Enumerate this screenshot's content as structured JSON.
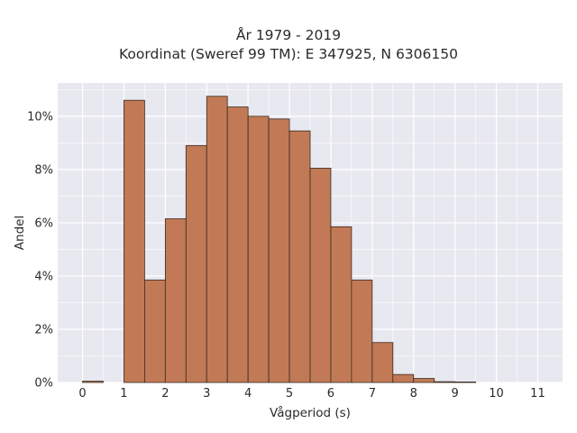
{
  "chart_data": {
    "type": "bar",
    "title": "År 1979 - 2019",
    "subtitle": "Koordinat (Sweref 99 TM): E 347925, N 6306150",
    "xlabel": "Vågperiod (s)",
    "ylabel": "Andel",
    "bin_width": 0.5,
    "bins": [
      {
        "start": 0.0,
        "value": 0.05
      },
      {
        "start": 0.5,
        "value": 0.0
      },
      {
        "start": 1.0,
        "value": 10.6
      },
      {
        "start": 1.5,
        "value": 3.85
      },
      {
        "start": 2.0,
        "value": 6.15
      },
      {
        "start": 2.5,
        "value": 8.9
      },
      {
        "start": 3.0,
        "value": 10.75
      },
      {
        "start": 3.5,
        "value": 10.35
      },
      {
        "start": 4.0,
        "value": 10.0
      },
      {
        "start": 4.5,
        "value": 9.9
      },
      {
        "start": 5.0,
        "value": 9.45
      },
      {
        "start": 5.5,
        "value": 8.05
      },
      {
        "start": 6.0,
        "value": 5.85
      },
      {
        "start": 6.5,
        "value": 3.85
      },
      {
        "start": 7.0,
        "value": 1.5
      },
      {
        "start": 7.5,
        "value": 0.3
      },
      {
        "start": 8.0,
        "value": 0.15
      },
      {
        "start": 8.5,
        "value": 0.03
      },
      {
        "start": 9.0,
        "value": 0.02
      }
    ],
    "x_ticks": [
      "0",
      "1",
      "2",
      "3",
      "4",
      "5",
      "6",
      "7",
      "8",
      "9",
      "10",
      "11"
    ],
    "y_ticks": [
      "0%",
      "2%",
      "4%",
      "6%",
      "8%",
      "10%"
    ],
    "xlim": [
      -0.6,
      11.6
    ],
    "ylim": [
      0,
      11.25
    ],
    "grid": true,
    "colors": {
      "bar_fill": "#c17a55",
      "bar_stroke": "#3a2a20",
      "plot_bg": "#e8e8f0",
      "grid": "#ffffff"
    }
  }
}
